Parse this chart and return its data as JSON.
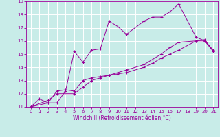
{
  "xlabel": "Windchill (Refroidissement éolien,°C)",
  "xlim": [
    -0.5,
    21.5
  ],
  "ylim": [
    11,
    19
  ],
  "xticks": [
    0,
    1,
    2,
    3,
    4,
    5,
    6,
    7,
    8,
    9,
    10,
    11,
    12,
    13,
    14,
    15,
    16,
    17,
    18,
    19,
    20,
    21
  ],
  "yticks": [
    11,
    12,
    13,
    14,
    15,
    16,
    17,
    18,
    19
  ],
  "bg_color": "#c8ece8",
  "line_color": "#990099",
  "grid_color": "#ffffff",
  "line1_x": [
    0,
    1,
    2,
    3,
    4,
    5,
    6,
    7,
    8,
    9,
    10,
    11,
    13,
    14,
    15,
    16,
    17,
    19,
    20,
    21
  ],
  "line1_y": [
    11.0,
    11.6,
    11.3,
    11.3,
    12.2,
    15.2,
    14.4,
    15.3,
    15.4,
    17.5,
    17.1,
    16.5,
    17.5,
    17.8,
    17.8,
    18.2,
    18.8,
    16.3,
    16.0,
    15.2
  ],
  "line2_x": [
    0,
    2,
    3,
    4,
    5,
    6,
    7,
    8,
    9,
    10,
    11,
    13,
    14,
    15,
    16,
    17,
    19,
    20,
    21
  ],
  "line2_y": [
    11.0,
    11.3,
    12.2,
    12.3,
    12.2,
    13.0,
    13.2,
    13.3,
    13.4,
    13.5,
    13.6,
    14.0,
    14.3,
    14.7,
    15.0,
    15.3,
    16.0,
    16.0,
    15.3
  ],
  "line3_x": [
    0,
    2,
    3,
    5,
    6,
    7,
    8,
    9,
    10,
    11,
    13,
    14,
    15,
    16,
    17,
    19,
    20,
    21
  ],
  "line3_y": [
    11.0,
    11.5,
    12.0,
    12.0,
    12.5,
    13.0,
    13.2,
    13.4,
    13.6,
    13.8,
    14.2,
    14.6,
    15.0,
    15.5,
    15.9,
    16.0,
    16.1,
    15.2
  ],
  "tick_fontsize": 5,
  "xlabel_fontsize": 5.5
}
